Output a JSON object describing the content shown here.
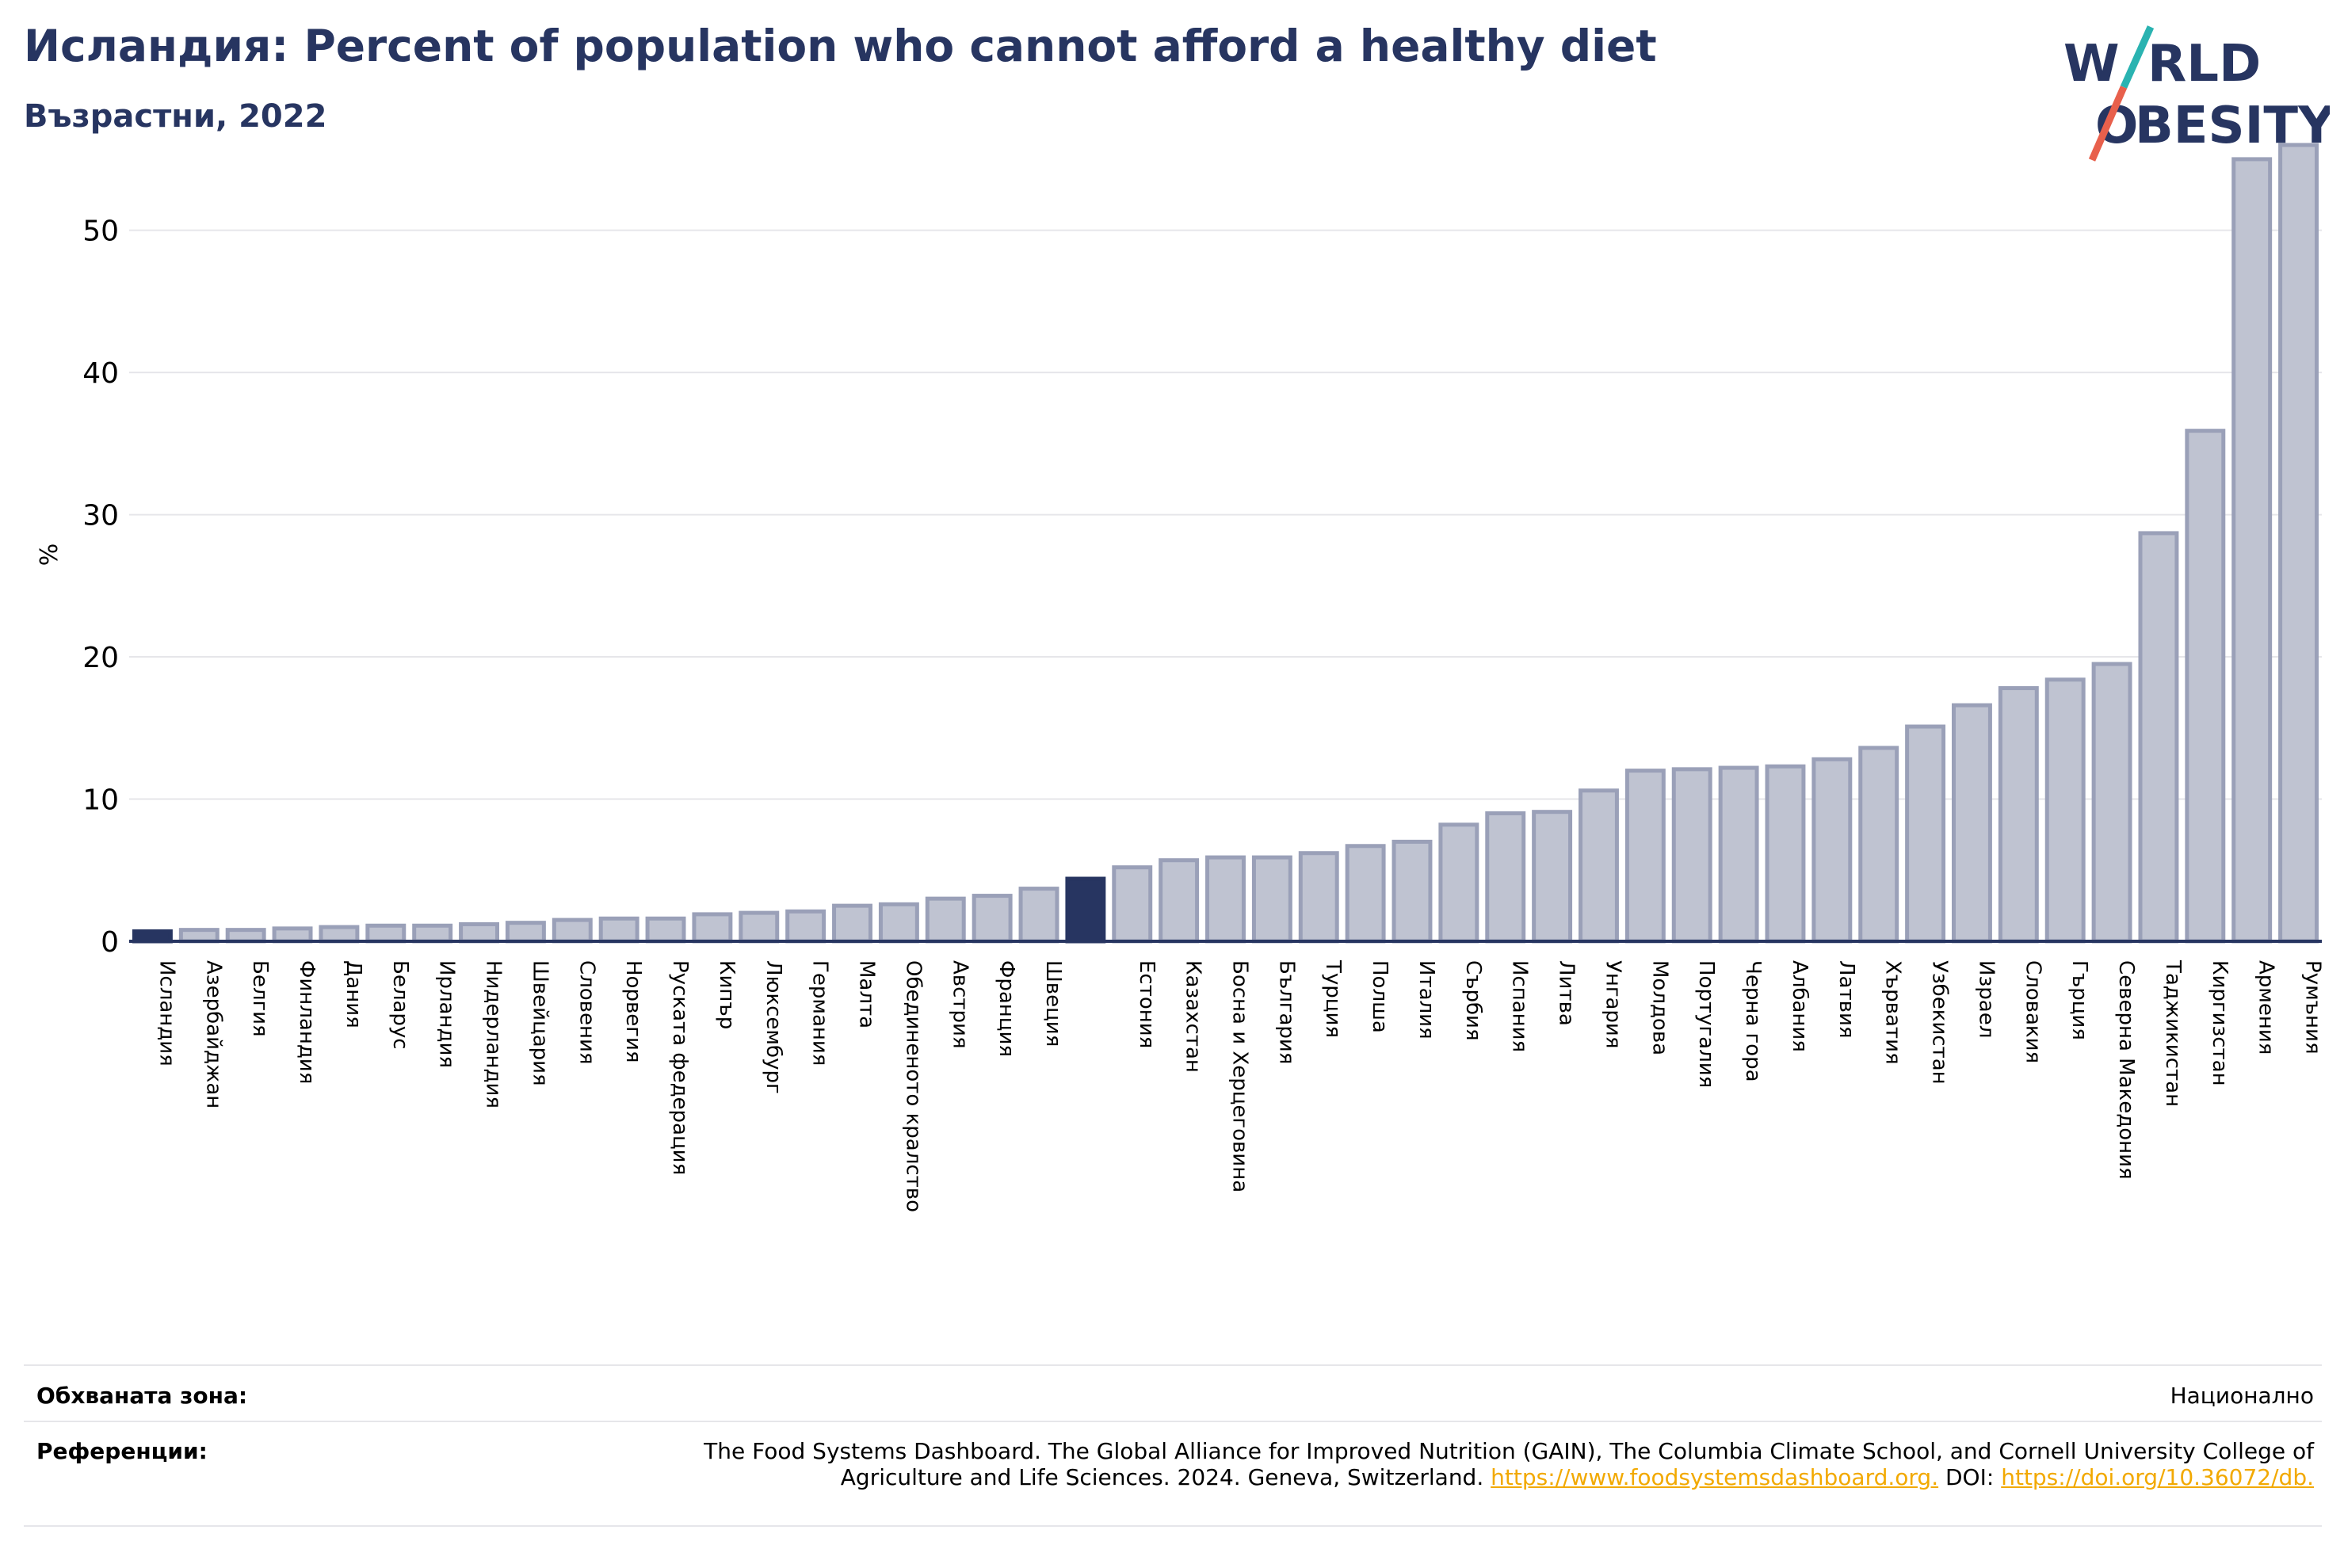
{
  "title": "Исландия: Percent of population who cannot afford a healthy diet",
  "subtitle": "Възрастни, 2022",
  "logo": {
    "line1": "W",
    "line1b": "RLD",
    "line2a": "O",
    "line2b": "BESITY",
    "slash_colors": [
      "#2ab3b1",
      "#e8604c"
    ],
    "text_color": "#273561"
  },
  "colors": {
    "highlight": "#273561",
    "bar_fill": "#bfc3d1",
    "bar_stroke": "#9aa0b8",
    "grid": "#e6e6ea",
    "axis": "#273561"
  },
  "chart_data": {
    "type": "bar",
    "title": "Исландия: Percent of population who cannot afford a healthy diet",
    "subtitle": "Възрастни, 2022",
    "ylabel": "%",
    "ylim": [
      0,
      57
    ],
    "yticks": [
      0,
      10,
      20,
      30,
      40,
      50
    ],
    "grid": true,
    "highlight": [
      "Исландия",
      ""
    ],
    "categories": [
      "Исландия",
      "Азербайджан",
      "Белгия",
      "Финландия",
      "Дания",
      "Беларус",
      "Ирландия",
      "Нидерландия",
      "Швейцария",
      "Словения",
      "Норвегия",
      "Руската федерация",
      "Кипър",
      "Люксембург",
      "Германия",
      "Малта",
      "Обединеното кралство",
      "Австрия",
      "Франция",
      "Швеция",
      "",
      "Естония",
      "Казахстан",
      "Босна и Херцеговина",
      "България",
      "Турция",
      "Полша",
      "Италия",
      "Сърбия",
      "Испания",
      "Литва",
      "Унгария",
      "Молдова",
      "Португалия",
      "Черна гора",
      "Албания",
      "Латвия",
      "Хърватия",
      "Узбекистан",
      "Израел",
      "Словакия",
      "Гърция",
      "Северна Македония",
      "Таджикистан",
      "Киргизстан",
      "Армения",
      "Румъния"
    ],
    "values": [
      0.7,
      0.8,
      0.8,
      0.9,
      1.0,
      1.1,
      1.1,
      1.2,
      1.3,
      1.5,
      1.6,
      1.6,
      1.9,
      2.0,
      2.1,
      2.5,
      2.6,
      3.0,
      3.2,
      3.7,
      4.4,
      5.2,
      5.7,
      5.9,
      5.9,
      6.2,
      6.7,
      7.0,
      8.2,
      9.0,
      9.1,
      10.6,
      12.0,
      12.1,
      12.2,
      12.3,
      12.8,
      13.6,
      15.1,
      16.6,
      17.8,
      18.4,
      19.5,
      28.7,
      35.9,
      55.0,
      56.0
    ]
  },
  "footer": {
    "coverage_label": "Обхваната зона:",
    "coverage_value": "Национално",
    "references_label": "Референции:",
    "references_text": "The Food Systems Dashboard. The Global Alliance for Improved Nutrition (GAIN), The Columbia Climate School, and Cornell University College of Agriculture and Life Sciences. 2024. Geneva, Switzerland.",
    "references_link1": "https://www.foodsystemsdashboard.org.",
    "references_doi_label": "DOI:",
    "references_link2": "https://doi.org/10.36072/db."
  }
}
